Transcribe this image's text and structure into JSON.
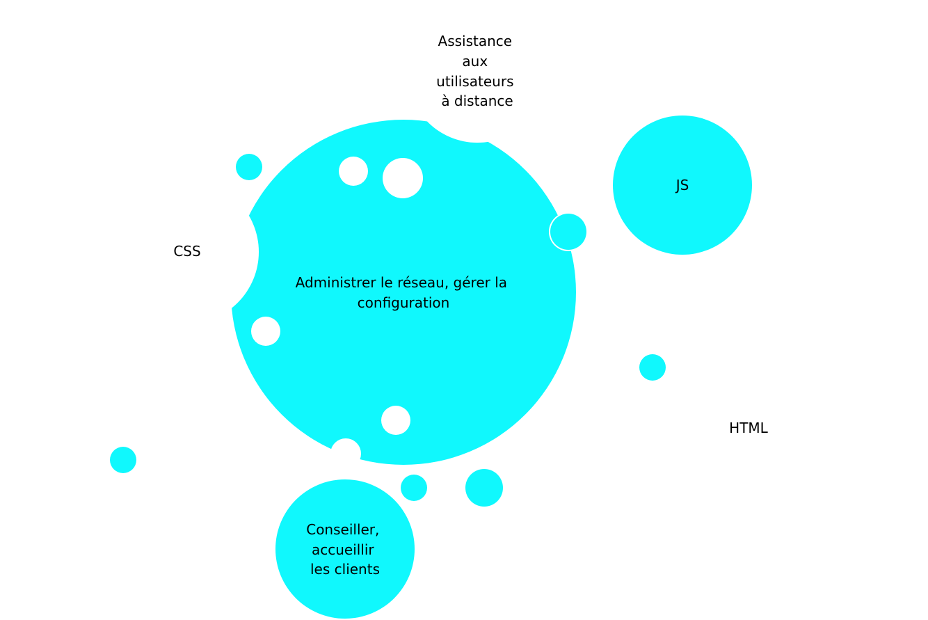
{
  "diagram": {
    "bubble_color": "#10F8FD",
    "background_color": "#FFFFFF",
    "labels": {
      "main": [
        "Administrer le réseau, gérer la",
        "configuration"
      ],
      "assistance": [
        "Assistance",
        "aux",
        "utilisateurs",
        "à distance"
      ],
      "js": [
        "JS"
      ],
      "css": [
        "CSS"
      ],
      "html": [
        "HTML"
      ],
      "conseiller": [
        "Conseiller,",
        "accueillir",
        "les clients"
      ]
    }
  }
}
